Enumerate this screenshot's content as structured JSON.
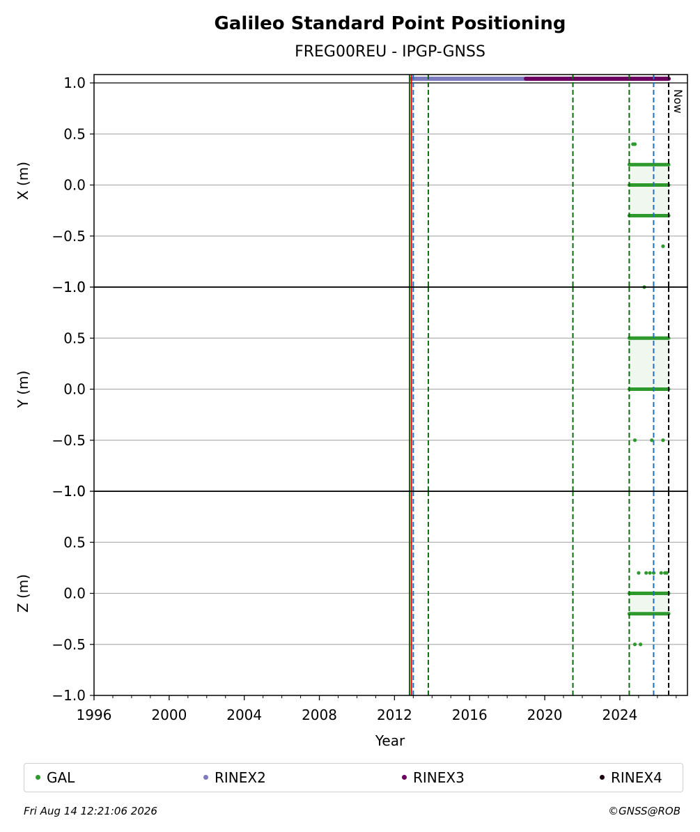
{
  "chart_data": {
    "type": "scatter",
    "title": "Galileo Standard Point Positioning",
    "subtitle": "FREG00REU - IPGP-GNSS",
    "xlabel": "Year",
    "xlim": [
      1996,
      2027.6
    ],
    "xticks": [
      "1996",
      "2000",
      "2004",
      "2008",
      "2012",
      "2016",
      "2020",
      "2024"
    ],
    "panels": [
      {
        "ylabel": "X (m)",
        "ylim": [
          -1.0,
          1.0
        ],
        "yticks": [
          "−1.0",
          "−0.5",
          "0.0",
          "0.5",
          "1.0"
        ],
        "series": [
          {
            "name": "GAL",
            "color": "#2e9a2e",
            "bands": [
              {
                "value": 0.2,
                "from": 2024.5,
                "to": 2026.6
              },
              {
                "value": 0.0,
                "from": 2024.5,
                "to": 2026.6
              },
              {
                "value": -0.3,
                "from": 2024.5,
                "to": 2026.6
              }
            ],
            "points": [
              [
                2024.7,
                0.4
              ],
              [
                2024.8,
                0.4
              ],
              [
                2026.3,
                -0.6
              ],
              [
                2025.3,
                -1.0
              ]
            ]
          }
        ]
      },
      {
        "ylabel": "Y (m)",
        "ylim": [
          -1.0,
          1.0
        ],
        "yticks": [
          "−1.0",
          "−0.5",
          "0.0",
          "0.5",
          "1.0"
        ],
        "series": [
          {
            "name": "GAL",
            "color": "#2e9a2e",
            "bands": [
              {
                "value": 0.5,
                "from": 2024.5,
                "to": 2026.6
              },
              {
                "value": 0.0,
                "from": 2024.5,
                "to": 2026.6
              }
            ],
            "points": [
              [
                2024.8,
                -0.5
              ],
              [
                2025.7,
                -0.5
              ],
              [
                2026.3,
                -0.5
              ]
            ]
          }
        ]
      },
      {
        "ylabel": "Z (m)",
        "ylim": [
          -1.0,
          1.0
        ],
        "yticks": [
          "−1.0",
          "−0.5",
          "0.0",
          "0.5",
          "1.0"
        ],
        "series": [
          {
            "name": "GAL",
            "color": "#2e9a2e",
            "bands": [
              {
                "value": 0.0,
                "from": 2024.5,
                "to": 2026.6
              },
              {
                "value": -0.2,
                "from": 2024.5,
                "to": 2026.6
              }
            ],
            "points": [
              [
                2025.0,
                0.2
              ],
              [
                2025.4,
                0.2
              ],
              [
                2025.6,
                0.2
              ],
              [
                2025.8,
                0.2
              ],
              [
                2026.2,
                0.2
              ],
              [
                2026.4,
                0.2
              ],
              [
                2026.5,
                0.2
              ],
              [
                2024.8,
                -0.5
              ],
              [
                2025.1,
                -0.5
              ]
            ]
          }
        ]
      }
    ],
    "rinex_bars": [
      {
        "name": "RINEX2",
        "color": "#7b7bbd",
        "from": 2012.9,
        "to": 2019.0
      },
      {
        "name": "RINEX3",
        "color": "#6b0060",
        "from": 2019.0,
        "to": 2026.6
      }
    ],
    "vlines": [
      {
        "x": 2012.9,
        "color": "#e8000b",
        "style": "solid"
      },
      {
        "x": 2013.0,
        "color": "#1f6fbf",
        "style": "dashed"
      },
      {
        "x": 2012.8,
        "color": "#007000",
        "style": "solid"
      },
      {
        "x": 2013.8,
        "color": "#007000",
        "style": "dashed"
      },
      {
        "x": 2021.5,
        "color": "#007000",
        "style": "dashed"
      },
      {
        "x": 2024.5,
        "color": "#007000",
        "style": "dashed"
      },
      {
        "x": 2025.8,
        "color": "#1f6fbf",
        "style": "dashed"
      },
      {
        "x": 2026.6,
        "color": "#000000",
        "style": "dashed"
      }
    ],
    "now_label": "Now",
    "grid": true,
    "legend_position": "bottom"
  },
  "legend": [
    {
      "label": "GAL",
      "color": "#2e9a2e"
    },
    {
      "label": "RINEX2",
      "color": "#7b7bbd"
    },
    {
      "label": "RINEX3",
      "color": "#6b0060"
    },
    {
      "label": "RINEX4",
      "color": "#1a0010"
    }
  ],
  "footer": {
    "timestamp": "Fri Aug 14 12:21:06 2026",
    "credit": "©GNSS@ROB"
  }
}
